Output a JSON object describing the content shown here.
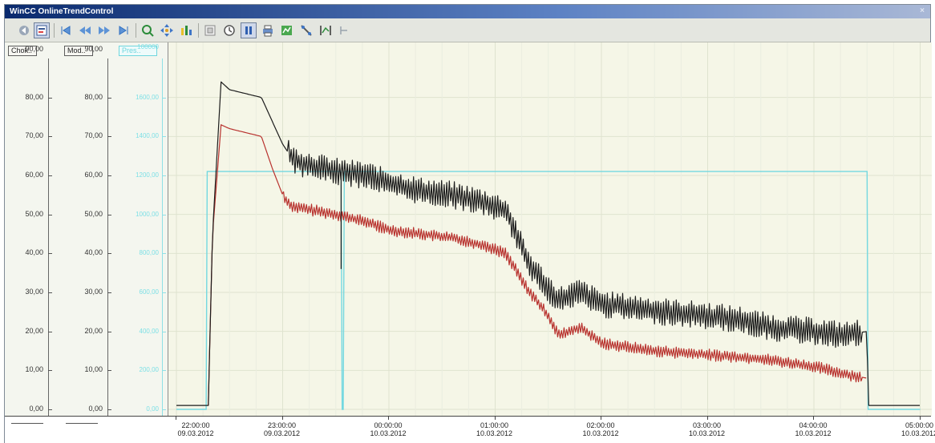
{
  "window": {
    "title": "WinCC OnlineTrendControl",
    "close_glyph": "×"
  },
  "toolbar": {
    "buttons": [
      {
        "name": "first-record-icon"
      },
      {
        "name": "properties-icon"
      },
      {
        "name": "skip-back-icon"
      },
      {
        "name": "rewind-icon"
      },
      {
        "name": "forward-icon"
      },
      {
        "name": "skip-forward-icon"
      },
      {
        "name": "zoom-area-icon"
      },
      {
        "name": "move-area-icon"
      },
      {
        "name": "zoom-axis-icon"
      },
      {
        "name": "original-view-icon"
      },
      {
        "name": "time-range-icon"
      },
      {
        "name": "start-stop-icon"
      },
      {
        "name": "print-icon"
      },
      {
        "name": "export-icon"
      },
      {
        "name": "ruler-icon"
      },
      {
        "name": "select-data-icon"
      },
      {
        "name": "statistics-icon"
      }
    ]
  },
  "axes": {
    "left1": {
      "header": "Chok..",
      "top_label": "90,00"
    },
    "left2": {
      "header": "Mod..",
      "top_label": "90,00"
    },
    "left3": {
      "header": "Pres..",
      "top_label": "100000"
    },
    "ticks": [
      "80,00",
      "70,00",
      "60,00",
      "50,00",
      "40,00",
      "30,00",
      "20,00",
      "10,00",
      "0,00"
    ],
    "cyan_ticks": [
      "1600,00",
      "1400,00",
      "1200,00",
      "1000,00",
      "800,00",
      "600,00",
      "400,00",
      "200,00",
      "0,00"
    ]
  },
  "time_axis": {
    "labels": [
      {
        "time": "22:00:00",
        "date": "09.03.2012"
      },
      {
        "time": "23:00:00",
        "date": "09.03.2012"
      },
      {
        "time": "00:00:00",
        "date": "10.03.2012"
      },
      {
        "time": "01:00:00",
        "date": "10.03.2012"
      },
      {
        "time": "02:00:00",
        "date": "10.03.2012"
      },
      {
        "time": "03:00:00",
        "date": "10.03.2012"
      },
      {
        "time": "04:00:00",
        "date": "10.03.2012"
      },
      {
        "time": "05:00:00",
        "date": "10.03.2012"
      }
    ]
  },
  "colors": {
    "series_black": "#1c1c1c",
    "series_red": "#b8322e",
    "series_cyan": "#73d8e0",
    "grid": "#dfe3cf",
    "plot_bg": "#f5f6e7"
  },
  "chart_data": {
    "type": "line",
    "x_unit": "time (hours since 22:00 09.03.2012)",
    "ylim": [
      0,
      90
    ],
    "series": [
      {
        "name": "Chok..",
        "color": "black",
        "x": [
          0.0,
          0.3,
          0.34,
          0.42,
          0.5,
          0.8,
          0.9,
          1.0,
          1.05,
          1.1,
          1.2,
          1.5,
          1.8,
          2.0,
          2.3,
          2.6,
          2.9,
          3.1,
          3.2,
          3.3,
          3.5,
          3.6,
          3.8,
          4.0,
          4.3,
          4.6,
          5.0,
          5.3,
          5.6,
          6.0,
          6.3,
          6.5,
          6.51,
          7.0
        ],
        "y": [
          1,
          1,
          45,
          84,
          82,
          80,
          74,
          68,
          66,
          64,
          63,
          61,
          60,
          58,
          56,
          55,
          53,
          51,
          45,
          38,
          31,
          28,
          30,
          27,
          26,
          25,
          24,
          23,
          21,
          20,
          19,
          20,
          1,
          1
        ]
      },
      {
        "name": "Mod..",
        "color": "red",
        "x": [
          0.3,
          0.34,
          0.42,
          0.5,
          0.8,
          0.9,
          1.0,
          1.05,
          1.1,
          1.5,
          1.8,
          2.0,
          2.3,
          2.6,
          2.9,
          3.1,
          3.3,
          3.5,
          3.6,
          3.8,
          4.0,
          4.5,
          5.0,
          5.5,
          6.0,
          6.3,
          6.5
        ],
        "y": [
          1,
          45,
          73,
          72,
          70,
          62,
          55,
          53,
          52,
          50,
          48,
          46,
          45,
          44,
          42,
          40,
          31,
          24,
          19,
          21,
          17,
          15,
          14,
          13,
          11,
          9,
          8
        ]
      },
      {
        "name": "Pres..",
        "color": "cyan",
        "x": [
          0.0,
          0.28,
          0.29,
          1.55,
          1.56,
          1.57,
          1.58,
          6.5,
          6.51,
          7.0
        ],
        "y": [
          0,
          0,
          61,
          61,
          0,
          0,
          61,
          61,
          0,
          0
        ]
      }
    ],
    "spikes": [
      {
        "series": "Chok..",
        "x": 1.55,
        "y": 36
      }
    ],
    "grid": true
  }
}
